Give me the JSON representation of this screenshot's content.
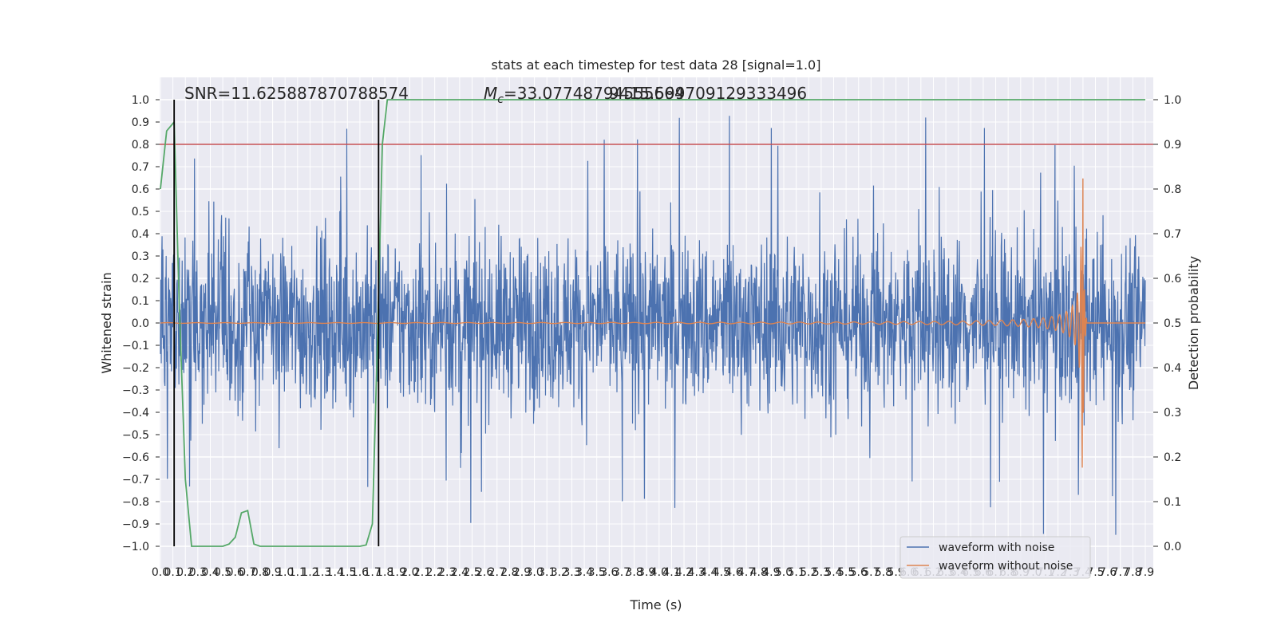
{
  "chart_data": {
    "type": "line",
    "title": "stats at each timestep for test data 28 [signal=1.0]",
    "xlabel": "Time (s)",
    "ylabel": "Whitened strain",
    "y2label": "Detection probability",
    "xlim": [
      0.0,
      7.9
    ],
    "ylim": [
      -1.1,
      1.1
    ],
    "y2lim": [
      -0.05,
      1.05
    ],
    "x_ticks": [
      "0.0",
      "0.1",
      "0.2",
      "0.3",
      "0.4",
      "0.5",
      "0.6",
      "0.7",
      "0.8",
      "0.9",
      "1.0",
      "1.1",
      "1.2",
      "1.3",
      "1.4",
      "1.5",
      "1.6",
      "1.7",
      "1.8",
      "1.9",
      "2.0",
      "2.1",
      "2.2",
      "2.3",
      "2.4",
      "2.5",
      "2.6",
      "2.7",
      "2.8",
      "2.9",
      "3.0",
      "3.1",
      "3.2",
      "3.3",
      "3.4",
      "3.5",
      "3.6",
      "3.7",
      "3.8",
      "3.9",
      "4.0",
      "4.1",
      "4.2",
      "4.3",
      "4.4",
      "4.5",
      "4.6",
      "4.7",
      "4.8",
      "4.9",
      "5.0",
      "5.1",
      "5.2",
      "5.3",
      "5.4",
      "5.5",
      "5.6",
      "5.7",
      "5.8",
      "5.9",
      "6.0",
      "6.1",
      "6.2",
      "6.3",
      "6.4",
      "6.5",
      "6.6",
      "6.7",
      "6.8",
      "6.9",
      "7.0",
      "7.1",
      "7.2",
      "7.3",
      "7.4",
      "7.5",
      "7.6",
      "7.7",
      "7.8",
      "7.9"
    ],
    "y_ticks": [
      "1.0",
      "0.9",
      "0.8",
      "0.7",
      "0.6",
      "0.5",
      "0.4",
      "0.3",
      "0.2",
      "0.1",
      "0.0",
      "−0.1",
      "−0.2",
      "−0.3",
      "−0.4",
      "−0.5",
      "−0.6",
      "−0.7",
      "−0.8",
      "−0.9",
      "−1.0"
    ],
    "y2_ticks": [
      "1.0",
      "0.9",
      "0.8",
      "0.7",
      "0.6",
      "0.5",
      "0.4",
      "0.3",
      "0.2",
      "0.1",
      "0.0"
    ],
    "grid": true,
    "legend_position": "lower-right",
    "annotations": {
      "snr": "SNR=11.625887870788574",
      "mc_symbol": "M",
      "mc_sub": "c",
      "mc_value": "=33.07748794555664",
      "mc_overlap": "9415.599709129333496"
    },
    "series": [
      {
        "name": "waveform with noise",
        "color": "#4c72b0",
        "kind": "noise",
        "amplitude_typical": 0.35,
        "amplitude_peak": 0.99
      },
      {
        "name": "waveform without noise",
        "color": "#dd8452",
        "kind": "chirp",
        "merger_time": 7.4,
        "peak_amplitude": 0.7
      },
      {
        "name": "",
        "color": "#55a868",
        "kind": "detection",
        "points": [
          [
            0.0,
            0.8
          ],
          [
            0.05,
            0.93
          ],
          [
            0.11,
            0.95
          ],
          [
            0.15,
            0.55
          ],
          [
            0.2,
            0.15
          ],
          [
            0.25,
            0.0
          ],
          [
            0.5,
            0.0
          ],
          [
            0.55,
            0.005
          ],
          [
            0.6,
            0.02
          ],
          [
            0.65,
            0.075
          ],
          [
            0.7,
            0.08
          ],
          [
            0.75,
            0.005
          ],
          [
            0.8,
            0.0
          ],
          [
            1.6,
            0.0
          ],
          [
            1.65,
            0.003
          ],
          [
            1.7,
            0.05
          ],
          [
            1.74,
            0.45
          ],
          [
            1.78,
            0.9
          ],
          [
            1.82,
            1.0
          ],
          [
            7.9,
            1.0
          ]
        ]
      },
      {
        "name": "",
        "color": "#c44e52",
        "kind": "threshold",
        "value": 0.9
      }
    ],
    "vertical_markers": [
      0.11,
      1.75
    ]
  }
}
